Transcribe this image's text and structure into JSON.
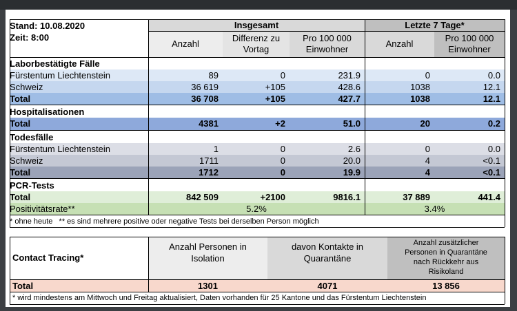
{
  "header": {
    "stand": "Stand: 10.08.2020",
    "zeit": "Zeit: 8:00",
    "insgesamt": "Insgesamt",
    "letzte7": "Letzte 7 Tage*",
    "col_anzahl": "Anzahl",
    "col_differenz": "Differenz zu Vortag",
    "col_pro100k": "Pro 100 000 Einwohner",
    "col_anzahl7": "Anzahl",
    "col_pro100k7": "Pro 100 000 Einwohner"
  },
  "laborbestaetigt": {
    "title": "Laborbestätigte Fälle",
    "rows": [
      {
        "label": "Fürstentum Liechtenstein",
        "anzahl": "89",
        "diff": "0",
        "pro": "231.9",
        "anzahl7": "0",
        "pro7": "0.0"
      },
      {
        "label": "Schweiz",
        "anzahl": "36 619",
        "diff": "+105",
        "pro": "428.6",
        "anzahl7": "1038",
        "pro7": "12.1"
      },
      {
        "label": "Total",
        "anzahl": "36 708",
        "diff": "+105",
        "pro": "427.7",
        "anzahl7": "1038",
        "pro7": "12.1"
      }
    ]
  },
  "hospitalisationen": {
    "title": "Hospitalisationen",
    "total": {
      "label": "Total",
      "anzahl": "4381",
      "diff": "+2",
      "pro": "51.0",
      "anzahl7": "20",
      "pro7": "0.2"
    }
  },
  "todesfaelle": {
    "title": "Todesfälle",
    "rows": [
      {
        "label": "Fürstentum Liechtenstein",
        "anzahl": "1",
        "diff": "0",
        "pro": "2.6",
        "anzahl7": "0",
        "pro7": "0.0"
      },
      {
        "label": "Schweiz",
        "anzahl": "1711",
        "diff": "0",
        "pro": "20.0",
        "anzahl7": "4",
        "pro7": "<0.1"
      },
      {
        "label": "Total",
        "anzahl": "1712",
        "diff": "0",
        "pro": "19.9",
        "anzahl7": "4",
        "pro7": "<0.1"
      }
    ]
  },
  "pcr": {
    "title": "PCR-Tests",
    "total": {
      "label": "Total",
      "anzahl": "842 509",
      "diff": "+2100",
      "pro": "9816.1",
      "anzahl7": "37 889",
      "pro7": "441.4"
    },
    "positiv": {
      "label": "Positivitätsrate**",
      "value": "5.2%",
      "value7": "3.4%"
    }
  },
  "footnote1": "* ohne heute   ** es sind mehrere positive oder negative Tests bei derselben Person möglich",
  "contact": {
    "title": "Contact Tracing*",
    "col1": "Anzahl Personen in Isolation",
    "col2": "davon Kontakte in Quarantäne",
    "col3": "Anzahl zusätzlicher Personen in Quarantäne nach Rückkehr aus Risikoland",
    "total_label": "Total",
    "v1": "1301",
    "v2": "4071",
    "v3": "13 856"
  },
  "footnote2": "* wird mindestens am Mittwoch und Freitag aktualisiert, Daten vorhanden für 25 Kantone und das Fürstentum Liechtenstein",
  "colors": {
    "header_gray": "#d9d9d9",
    "header_dark": "#bfbfbf",
    "blue_light": "#dde8f6",
    "blue_mid": "#c5d7ef",
    "blue_total": "#9fbde5",
    "hosp_total": "#8ea9db",
    "tod_light": "#dcdee6",
    "tod_mid": "#c4c8d4",
    "tod_total": "#9ba3b8",
    "pcr_total": "#dfeed8",
    "pcr_rate": "#c6e0b4",
    "ct_col1": "#ededed",
    "ct_col2": "#d9d9d9",
    "ct_col3": "#bfbfbf",
    "ct_total": "#f8d8cc"
  }
}
